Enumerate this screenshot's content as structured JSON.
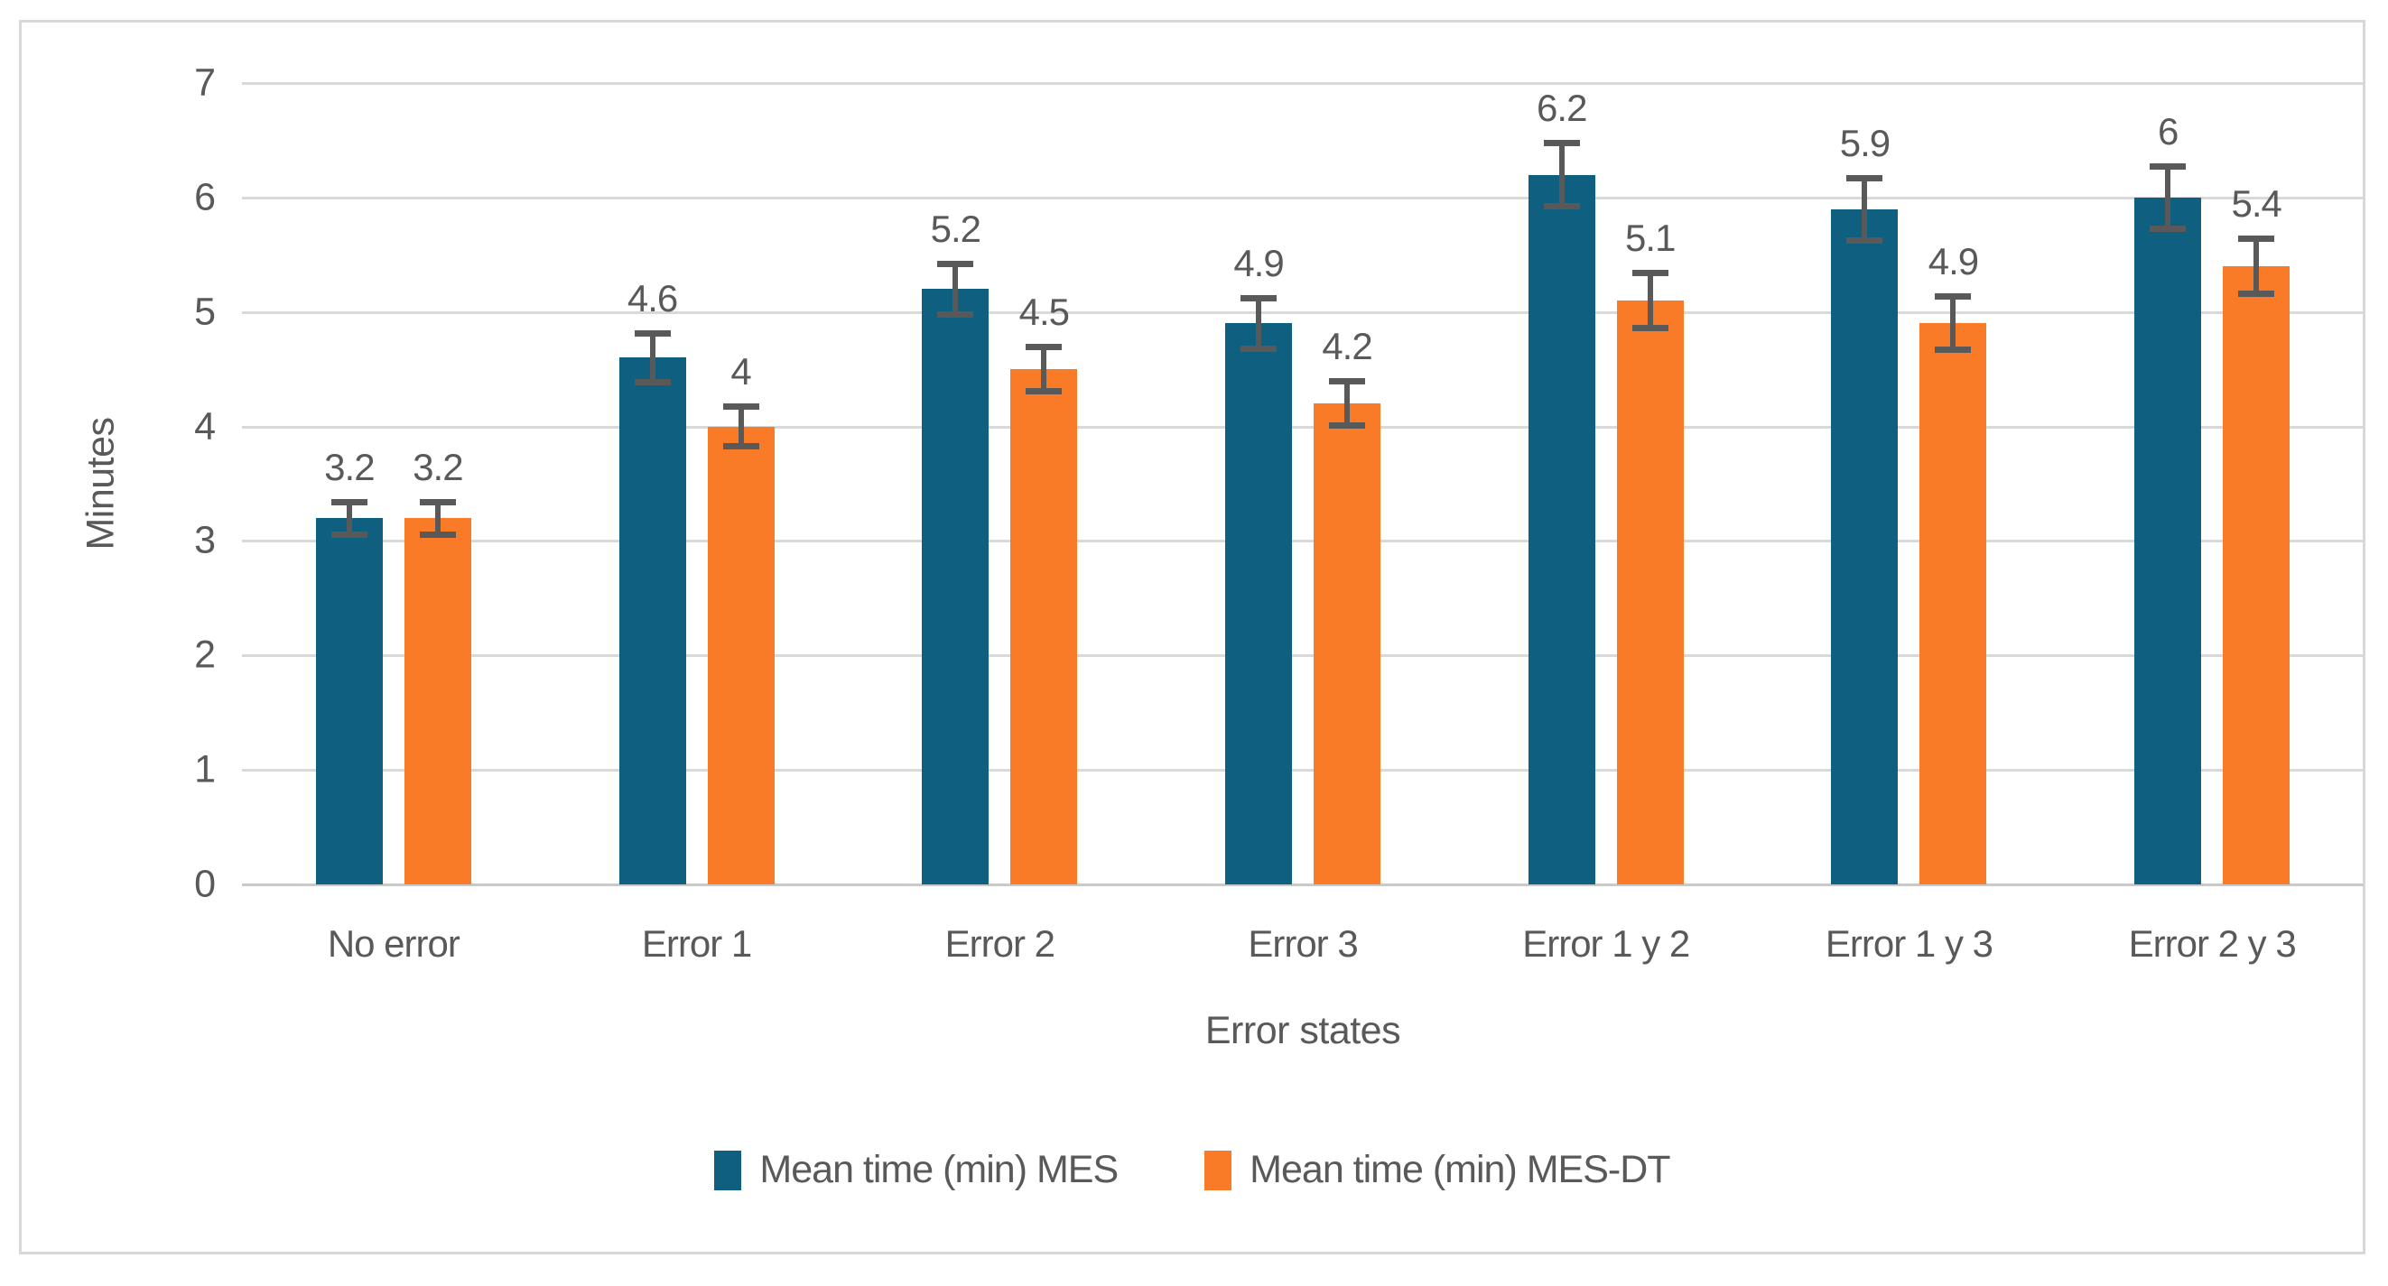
{
  "chart_data": {
    "type": "bar",
    "title": "",
    "categories": [
      "No error",
      "Error 1",
      "Error 2",
      "Error 3",
      "Error 1 y 2",
      "Error 1 y 3",
      "Error 2 y 3"
    ],
    "series": [
      {
        "name": "Mean time (min) MES",
        "color": "#0f6080",
        "values": [
          3.2,
          4.6,
          5.2,
          4.9,
          6.2,
          5.9,
          6.0
        ],
        "labels": [
          "3.2",
          "4.6",
          "5.2",
          "4.9",
          "6.2",
          "5.9",
          "6"
        ],
        "errors": [
          0.17,
          0.24,
          0.25,
          0.25,
          0.3,
          0.3,
          0.3
        ]
      },
      {
        "name": "Mean time (min) MES-DT",
        "color": "#f97b28",
        "values": [
          3.2,
          4.0,
          4.5,
          4.2,
          5.1,
          4.9,
          5.4
        ],
        "labels": [
          "3.2",
          "4",
          "4.5",
          "4.2",
          "5.1",
          "4.9",
          "5.4"
        ],
        "errors": [
          0.17,
          0.2,
          0.22,
          0.22,
          0.27,
          0.26,
          0.27
        ]
      }
    ],
    "xlabel": "Error states",
    "ylabel": "Minutes",
    "ylim": [
      0,
      7
    ],
    "yticks": [
      0,
      1,
      2,
      3,
      4,
      5,
      6,
      7
    ],
    "grid": true,
    "error_bars": true,
    "legend_position": "bottom"
  },
  "colors": {
    "series_mes": "#0f6080",
    "series_mes_dt": "#f97b28",
    "error_bar": "#595959",
    "gridline": "#d9d9d9",
    "axis_line": "#c9c9c9",
    "text": "#595959",
    "frame_border": "#d8d8d8",
    "background": "#ffffff"
  }
}
